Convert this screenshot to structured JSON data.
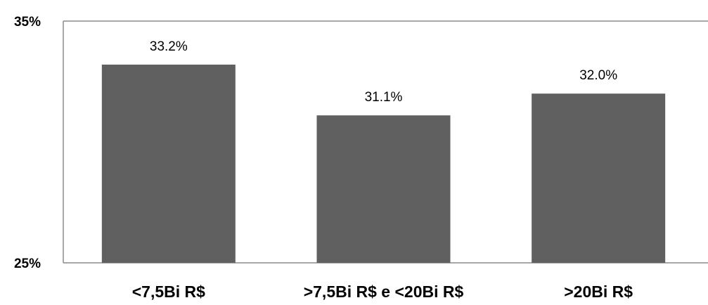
{
  "chart_data": {
    "type": "bar",
    "title": "",
    "xlabel": "",
    "ylabel": "",
    "categories": [
      "<7,5Bi R$",
      ">7,5Bi R$ e <20Bi R$",
      ">20Bi R$"
    ],
    "values": [
      33.2,
      31.1,
      32.0
    ],
    "data_labels": [
      "33.2%",
      "31.1%",
      "32.0%"
    ],
    "ylim": [
      25,
      35
    ],
    "y_ticks": [
      {
        "value": 35,
        "label": "35%"
      },
      {
        "value": 25,
        "label": "25%"
      }
    ],
    "grid": false,
    "legend": "none",
    "colors": {
      "bar": "#606060",
      "axis": "#8c8c8c",
      "text": "#000000"
    }
  }
}
